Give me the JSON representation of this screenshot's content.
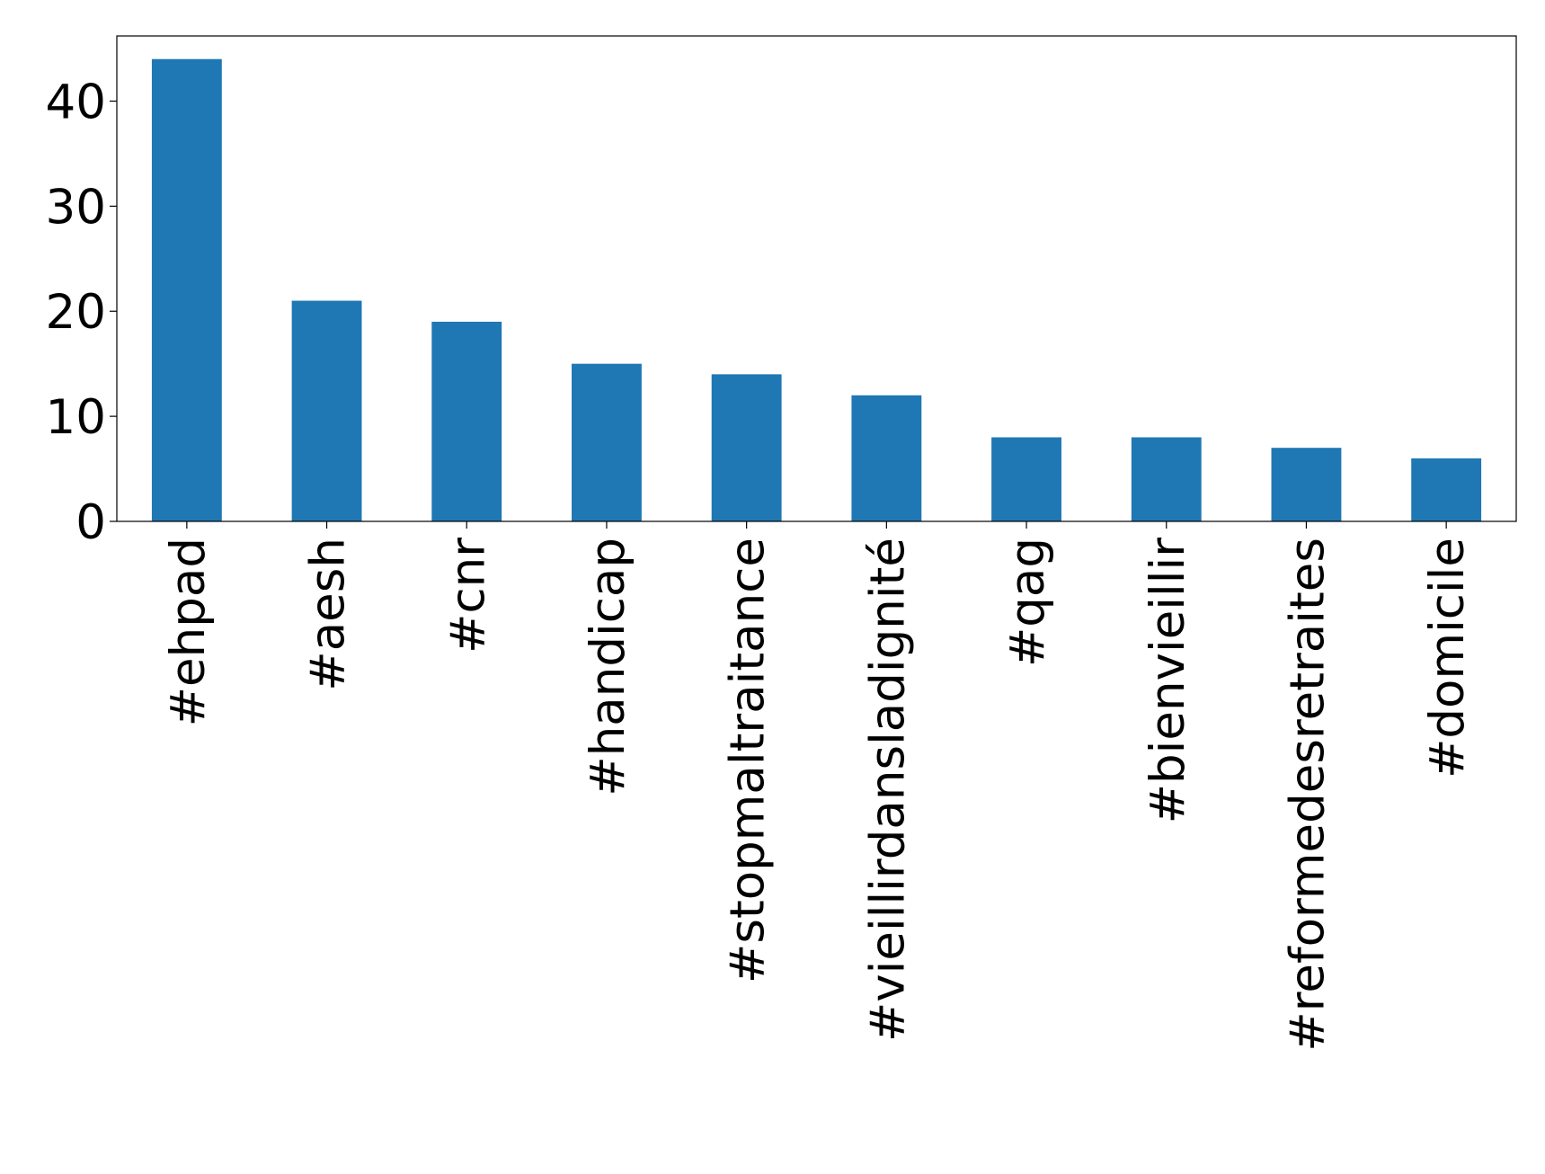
{
  "chart_data": {
    "type": "bar",
    "categories": [
      "#ehpad",
      "#aesh",
      "#cnr",
      "#handicap",
      "#stopmaltraitance",
      "#vieillirdansladignité",
      "#qag",
      "#bienvieillir",
      "#reformedesretraites",
      "#domicile"
    ],
    "values": [
      44,
      21,
      19,
      15,
      14,
      12,
      8,
      8,
      7,
      6
    ],
    "color": "#1f77b4",
    "ylim": [
      0,
      46.2
    ],
    "yticks": [
      0,
      10,
      20,
      30,
      40
    ],
    "grid": false
  }
}
